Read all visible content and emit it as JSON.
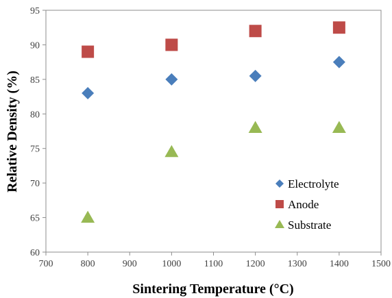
{
  "chart_data": {
    "type": "scatter",
    "xlabel": "Sintering Temperature (°C)",
    "ylabel": "Relative Density (%)",
    "xlim": [
      700,
      1500
    ],
    "ylim": [
      60,
      95
    ],
    "x_ticks": [
      "700",
      "800",
      "900",
      "1000",
      "1100",
      "1200",
      "1300",
      "1400",
      "1500"
    ],
    "y_ticks": [
      "60",
      "65",
      "70",
      "75",
      "80",
      "85",
      "90",
      "95"
    ],
    "grid": false,
    "legend_position": "bottom-right",
    "series": [
      {
        "name": "Electrolyte",
        "marker": "diamond",
        "color": "#4a7ebb",
        "x": [
          800,
          1000,
          1200,
          1400
        ],
        "y": [
          83,
          85,
          85.5,
          87.5
        ]
      },
      {
        "name": "Anode",
        "marker": "square",
        "color": "#be4b48",
        "x": [
          800,
          1000,
          1200,
          1400
        ],
        "y": [
          89,
          90,
          92,
          92.5
        ]
      },
      {
        "name": "Substrate",
        "marker": "triangle",
        "color": "#98b954",
        "x": [
          800,
          1000,
          1200,
          1400
        ],
        "y": [
          65,
          74.5,
          78,
          78
        ]
      }
    ]
  }
}
